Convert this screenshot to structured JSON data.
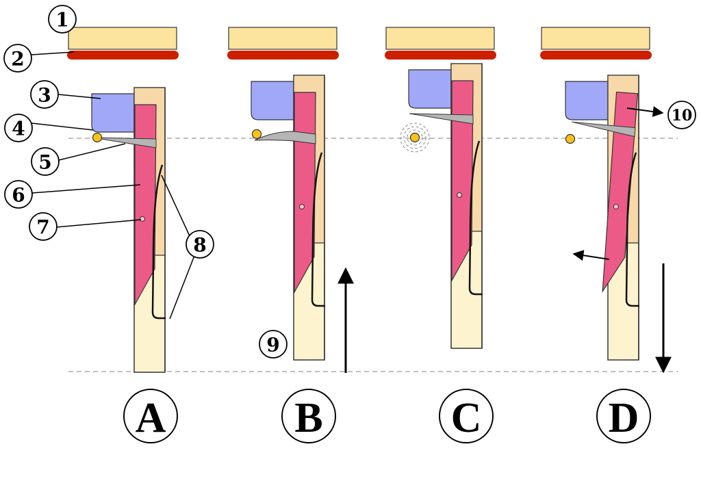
{
  "colors": {
    "rail": "#fde49e",
    "felt": "#cc1f00",
    "damper": "#a0a8f7",
    "jack_upper": "#f7d8a8",
    "jack_lower": "#fdf3cf",
    "tongue": "#ec5a88",
    "plectrum": "#b5b5b5",
    "string": "#f9c21a",
    "axle": "#f7c3d7"
  },
  "labels": [
    "1",
    "2",
    "3",
    "4",
    "5",
    "6",
    "7",
    "8",
    "9",
    "10"
  ],
  "panels": [
    "A",
    "B",
    "C",
    "D"
  ]
}
